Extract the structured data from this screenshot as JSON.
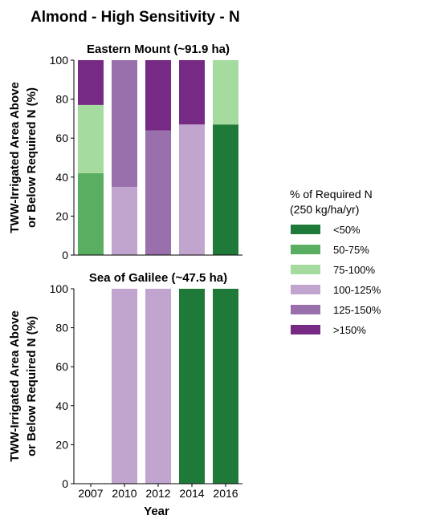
{
  "figure": {
    "title": "Almond - High Sensitivity - N",
    "xlabel": "Year"
  },
  "colors": {
    "lt50": "#1f7a3a",
    "50-75": "#5aae61",
    "75-100": "#a6dba0",
    "100-125": "#c2a5cf",
    "125-150": "#9970ab",
    "gt150": "#762a83"
  },
  "legend": {
    "title_line1": "% of Required N",
    "title_line2": "(250 kg/ha/yr)",
    "placement": "right",
    "items": [
      {
        "key": "lt50",
        "label": "<50%"
      },
      {
        "key": "50-75",
        "label": "50-75%"
      },
      {
        "key": "75-100",
        "label": "75-100%"
      },
      {
        "key": "100-125",
        "label": "100-125%"
      },
      {
        "key": "125-150",
        "label": "125-150%"
      },
      {
        "key": "gt150",
        "label": ">150%"
      }
    ]
  },
  "chart_data": [
    {
      "type": "bar",
      "stacked": true,
      "title": "Eastern Mount (~91.9 ha)",
      "ylabel_line1": "TWW-Irrigated Area Above",
      "ylabel_line2": "or Below Required N (%)",
      "ylim": [
        0,
        100
      ],
      "yticks": [
        0,
        20,
        40,
        60,
        80,
        100
      ],
      "categories": [
        "2007",
        "2010",
        "2012",
        "2014",
        "2016"
      ],
      "show_xticklabels": false,
      "series": [
        {
          "name": "<50%",
          "key": "lt50",
          "values": [
            0,
            0,
            0,
            0,
            67
          ]
        },
        {
          "name": "50-75%",
          "key": "50-75",
          "values": [
            42,
            0,
            0,
            0,
            0
          ]
        },
        {
          "name": "75-100%",
          "key": "75-100",
          "values": [
            35,
            0,
            0,
            0,
            33
          ]
        },
        {
          "name": "100-125%",
          "key": "100-125",
          "values": [
            0,
            35,
            0,
            67,
            0
          ]
        },
        {
          "name": "125-150%",
          "key": "125-150",
          "values": [
            0,
            65,
            64,
            0,
            0
          ]
        },
        {
          "name": ">150%",
          "key": "gt150",
          "values": [
            23,
            0,
            36,
            33,
            0
          ]
        }
      ]
    },
    {
      "type": "bar",
      "stacked": true,
      "title": "Sea of Galilee (~47.5 ha)",
      "ylabel_line1": "TWW-Irrigated Area Above",
      "ylabel_line2": "or Below Required N (%)",
      "ylim": [
        0,
        100
      ],
      "yticks": [
        0,
        20,
        40,
        60,
        80,
        100
      ],
      "categories": [
        "2007",
        "2010",
        "2012",
        "2014",
        "2016"
      ],
      "show_xticklabels": true,
      "series": [
        {
          "name": "<50%",
          "key": "lt50",
          "values": [
            0,
            0,
            0,
            100,
            100
          ]
        },
        {
          "name": "50-75%",
          "key": "50-75",
          "values": [
            0,
            0,
            0,
            0,
            0
          ]
        },
        {
          "name": "75-100%",
          "key": "75-100",
          "values": [
            0,
            0,
            0,
            0,
            0
          ]
        },
        {
          "name": "100-125%",
          "key": "100-125",
          "values": [
            0,
            100,
            100,
            0,
            0
          ]
        },
        {
          "name": "125-150%",
          "key": "125-150",
          "values": [
            0,
            0,
            0,
            0,
            0
          ]
        },
        {
          "name": ">150%",
          "key": "gt150",
          "values": [
            0,
            0,
            0,
            0,
            0
          ]
        }
      ]
    }
  ]
}
